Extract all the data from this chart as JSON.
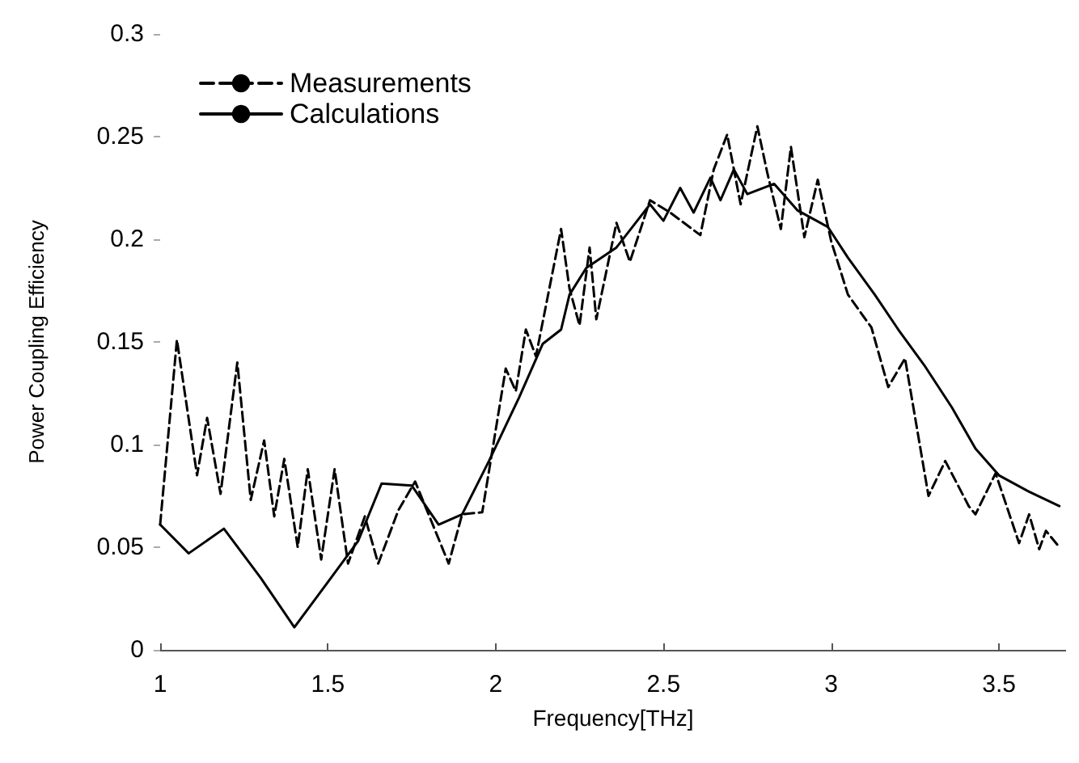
{
  "chart_data": {
    "type": "line",
    "xlabel": "Frequency[THz]",
    "ylabel": "Power Coupling Efficiency",
    "xlim": [
      1,
      3.7
    ],
    "xticks": [
      1,
      1.5,
      2,
      2.5,
      3,
      3.5
    ],
    "ylim": [
      0,
      0.3
    ],
    "yticks": [
      0,
      0.05,
      0.1,
      0.15,
      0.2,
      0.25,
      0.3
    ],
    "grid": false,
    "legend": "top left",
    "marker": "none",
    "series": [
      {
        "name": "Measurements",
        "color": "#000000",
        "line_style": "dashed",
        "x": [
          1.0,
          1.05,
          1.11,
          1.14,
          1.18,
          1.23,
          1.27,
          1.31,
          1.34,
          1.37,
          1.41,
          1.44,
          1.48,
          1.52,
          1.56,
          1.61,
          1.65,
          1.71,
          1.76,
          1.8,
          1.86,
          1.9,
          1.96,
          2.03,
          2.06,
          2.09,
          2.12,
          2.195,
          2.22,
          2.25,
          2.28,
          2.3,
          2.36,
          2.4,
          2.46,
          2.52,
          2.61,
          2.65,
          2.69,
          2.73,
          2.78,
          2.81,
          2.85,
          2.88,
          2.92,
          2.96,
          3.0,
          3.05,
          3.12,
          3.17,
          3.22,
          3.29,
          3.34,
          3.41,
          3.43,
          3.49,
          3.56,
          3.59,
          3.62,
          3.64,
          3.68
        ],
        "values": [
          0.061,
          0.151,
          0.085,
          0.113,
          0.076,
          0.14,
          0.073,
          0.102,
          0.065,
          0.093,
          0.05,
          0.088,
          0.044,
          0.088,
          0.042,
          0.065,
          0.042,
          0.068,
          0.082,
          0.066,
          0.042,
          0.066,
          0.067,
          0.137,
          0.126,
          0.156,
          0.143,
          0.205,
          0.176,
          0.158,
          0.196,
          0.161,
          0.208,
          0.189,
          0.219,
          0.213,
          0.202,
          0.234,
          0.251,
          0.217,
          0.255,
          0.232,
          0.205,
          0.245,
          0.201,
          0.229,
          0.199,
          0.173,
          0.157,
          0.128,
          0.142,
          0.075,
          0.092,
          0.07,
          0.066,
          0.086,
          0.052,
          0.066,
          0.049,
          0.058,
          0.05
        ]
      },
      {
        "name": "Calculations",
        "color": "#000000",
        "line_style": "solid",
        "x": [
          1.0,
          1.085,
          1.19,
          1.3,
          1.4,
          1.5,
          1.59,
          1.66,
          1.75,
          1.83,
          1.9,
          1.98,
          2.07,
          2.14,
          2.195,
          2.22,
          2.27,
          2.36,
          2.46,
          2.5,
          2.55,
          2.59,
          2.64,
          2.67,
          2.71,
          2.75,
          2.83,
          2.9,
          2.99,
          3.05,
          3.13,
          3.2,
          3.28,
          3.36,
          3.43,
          3.5,
          3.59,
          3.68
        ],
        "values": [
          0.061,
          0.047,
          0.059,
          0.035,
          0.011,
          0.033,
          0.053,
          0.081,
          0.08,
          0.061,
          0.066,
          0.092,
          0.123,
          0.149,
          0.156,
          0.173,
          0.186,
          0.196,
          0.217,
          0.209,
          0.225,
          0.213,
          0.23,
          0.219,
          0.234,
          0.222,
          0.227,
          0.214,
          0.206,
          0.191,
          0.173,
          0.156,
          0.138,
          0.118,
          0.098,
          0.085,
          0.077,
          0.07
        ]
      }
    ]
  }
}
